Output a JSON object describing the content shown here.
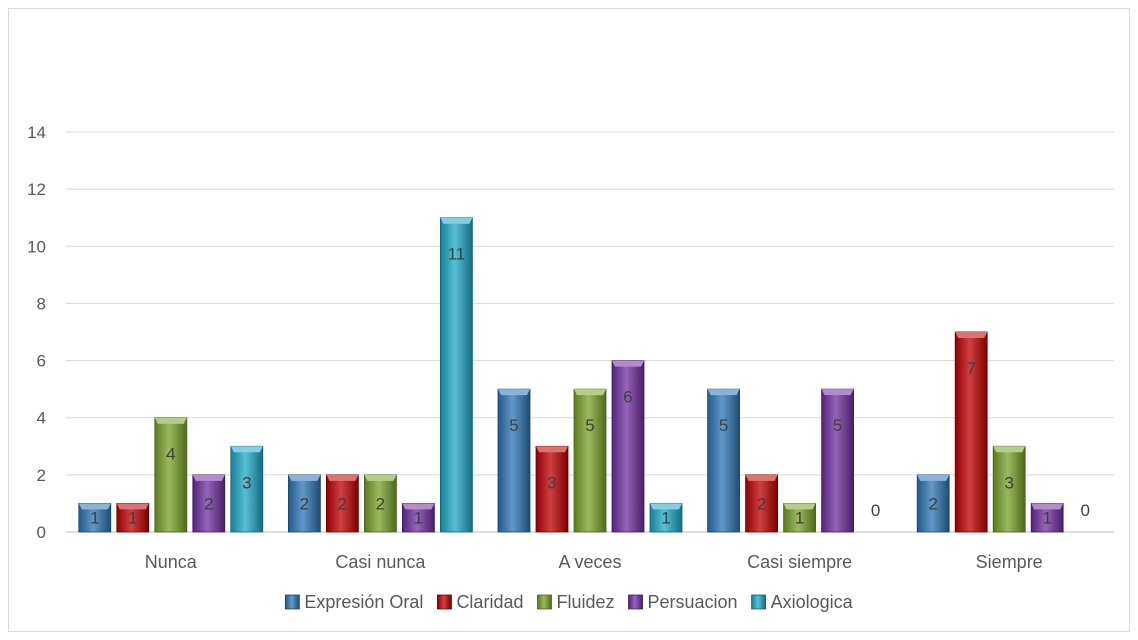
{
  "chart_data": {
    "type": "bar",
    "categories": [
      "Nunca",
      "Casi nunca",
      "A veces",
      "Casi siempre",
      "Siempre"
    ],
    "series": [
      {
        "name": "Expresión Oral",
        "color": "#2e75b6",
        "values": [
          1,
          2,
          5,
          5,
          2
        ]
      },
      {
        "name": "Claridad",
        "color": "#c00000",
        "values": [
          1,
          2,
          3,
          2,
          7
        ]
      },
      {
        "name": "Fluidez",
        "color": "#7aa32a",
        "values": [
          4,
          2,
          5,
          1,
          3
        ]
      },
      {
        "name": "Persuacion",
        "color": "#7030a0",
        "values": [
          2,
          1,
          6,
          5,
          1
        ]
      },
      {
        "name": "Axiologica",
        "color": "#1fa9c8",
        "values": [
          3,
          11,
          1,
          0,
          0
        ]
      }
    ],
    "ylim": [
      0,
      14
    ],
    "yticks": [
      0,
      2,
      4,
      6,
      8,
      10,
      12,
      14
    ],
    "grid": true,
    "legend": "bottom"
  }
}
